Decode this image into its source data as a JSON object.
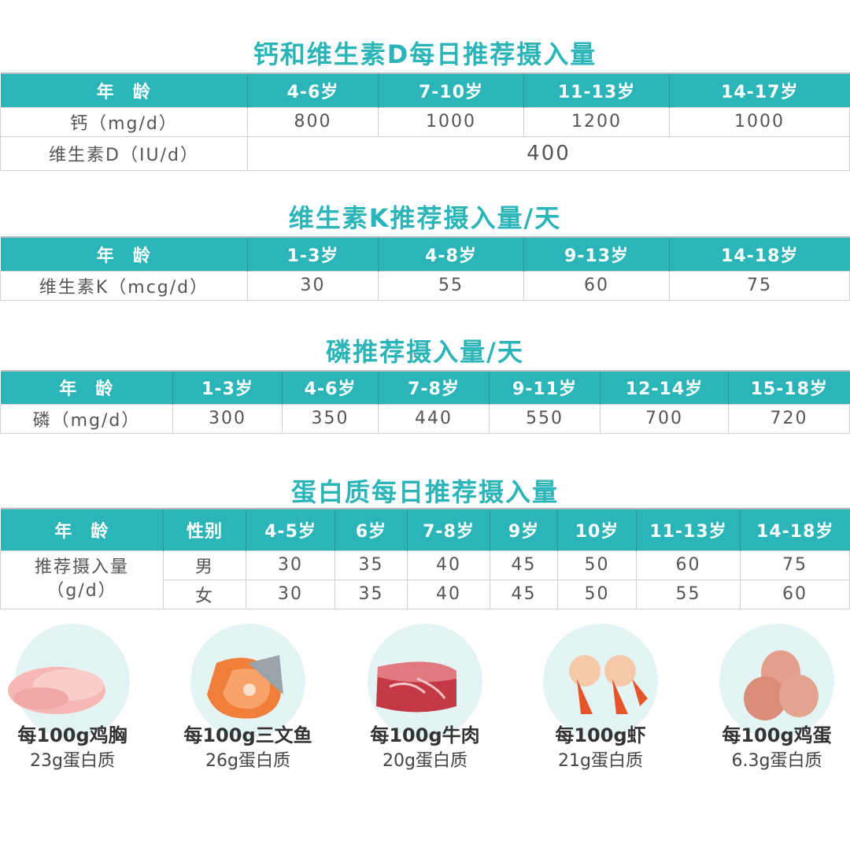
{
  "colors": {
    "accent": "#2bb5b8"
  },
  "t1": {
    "title": "钙和维生素D每日推荐摄入量",
    "headers": [
      "年　龄",
      "4-6岁",
      "7-10岁",
      "11-13岁",
      "14-17岁"
    ],
    "rows": [
      [
        "钙（mg/d）",
        "800",
        "1000",
        "1200",
        "1000"
      ]
    ],
    "vd_label": "维生素D（IU/d）",
    "vd_value": "400"
  },
  "t2": {
    "title": "维生素K推荐摄入量/天",
    "headers": [
      "年　龄",
      "1-3岁",
      "4-8岁",
      "9-13岁",
      "14-18岁"
    ],
    "rows": [
      [
        "维生素K（mcg/d）",
        "30",
        "55",
        "60",
        "75"
      ]
    ]
  },
  "t3": {
    "title": "磷推荐摄入量/天",
    "headers": [
      "年　龄",
      "1-3岁",
      "4-6岁",
      "7-8岁",
      "9-11岁",
      "12-14岁",
      "15-18岁"
    ],
    "rows": [
      [
        "磷（mg/d）",
        "300",
        "350",
        "440",
        "550",
        "700",
        "720"
      ]
    ]
  },
  "t4": {
    "title": "蛋白质每日推荐摄入量",
    "headers": [
      "年　龄",
      "性别",
      "4-5岁",
      "6岁",
      "7-8岁",
      "9岁",
      "10岁",
      "11-13岁",
      "14-18岁"
    ],
    "row_label": "推荐摄入量（g/d）",
    "rows": [
      [
        "男",
        "30",
        "35",
        "40",
        "45",
        "50",
        "60",
        "75"
      ],
      [
        "女",
        "30",
        "35",
        "40",
        "45",
        "50",
        "55",
        "60"
      ]
    ]
  },
  "foods": [
    {
      "icon": "chicken-breast",
      "name": "每100g鸡胸",
      "value": "23g蛋白质"
    },
    {
      "icon": "salmon",
      "name": "每100g三文鱼",
      "value": "26g蛋白质"
    },
    {
      "icon": "beef",
      "name": "每100g牛肉",
      "value": "20g蛋白质"
    },
    {
      "icon": "shrimp",
      "name": "每100g虾",
      "value": "21g蛋白质"
    },
    {
      "icon": "eggs",
      "name": "每100g鸡蛋",
      "value": "6.3g蛋白质"
    }
  ]
}
